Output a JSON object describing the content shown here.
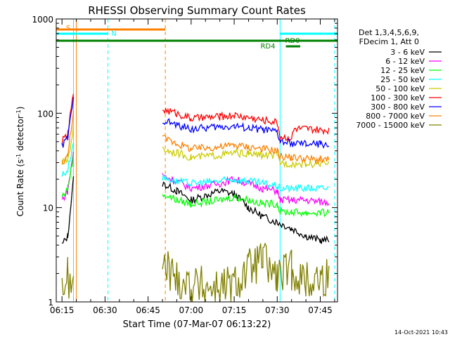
{
  "chart_data": {
    "type": "line",
    "title": "RHESSI Observing Summary Count Rates",
    "xlabel": "Start Time (07-Mar-07 06:13:22)",
    "ylabel_pre": "Count Rate (s",
    "ylabel_sup1": "-1",
    "ylabel_mid": " detector",
    "ylabel_sup2": "-1",
    "ylabel_post": ")",
    "y_scale": "log",
    "ylim": [
      1,
      1000
    ],
    "xlim": [
      "06:13",
      "07:51"
    ],
    "x_tick_labels": [
      "06:15",
      "06:30",
      "06:45",
      "07:00",
      "07:15",
      "07:30",
      "07:45"
    ],
    "y_tick_labels": [
      "1",
      "10",
      "100",
      "1000"
    ],
    "legend_title_1": "Det 1,3,4,5,6,9,",
    "legend_title_2": "FDecim 1, Att 0",
    "legend_position": "right",
    "footer_date": "14-Oct-2021 10:43",
    "flag_labels": {
      "s": "S",
      "n": "N",
      "rd4": "RD4",
      "rd0": "RD0"
    },
    "series": [
      {
        "name": "3 - 6 keV",
        "color": "#000000",
        "points": [
          [
            "06:15",
            4
          ],
          [
            "06:17",
            5
          ],
          [
            "06:19",
            20
          ],
          [
            "06:20",
            null
          ],
          [
            "06:50",
            18
          ],
          [
            "06:55",
            15
          ],
          [
            "07:00",
            12
          ],
          [
            "07:10",
            15
          ],
          [
            "07:15",
            14
          ],
          [
            "07:20",
            10
          ],
          [
            "07:25",
            8
          ],
          [
            "07:30",
            7
          ],
          [
            "07:35",
            6
          ],
          [
            "07:40",
            5
          ],
          [
            "07:45",
            4.5
          ],
          [
            "07:48",
            4.5
          ]
        ]
      },
      {
        "name": "6 - 12 keV",
        "color": "#ff00ff",
        "points": [
          [
            "06:15",
            12
          ],
          [
            "06:17",
            15
          ],
          [
            "06:19",
            40
          ],
          [
            "06:20",
            null
          ],
          [
            "06:50",
            22
          ],
          [
            "06:55",
            19
          ],
          [
            "07:00",
            16
          ],
          [
            "07:10",
            18
          ],
          [
            "07:15",
            20
          ],
          [
            "07:20",
            18
          ],
          [
            "07:25",
            16
          ],
          [
            "07:30",
            15
          ],
          [
            "07:31",
            12
          ],
          [
            "07:35",
            12
          ],
          [
            "07:40",
            12
          ],
          [
            "07:45",
            11.5
          ],
          [
            "07:48",
            11.5
          ]
        ]
      },
      {
        "name": "12 - 25 keV",
        "color": "#00ff00",
        "points": [
          [
            "06:15",
            13
          ],
          [
            "06:17",
            16
          ],
          [
            "06:19",
            35
          ],
          [
            "06:20",
            null
          ],
          [
            "06:50",
            14
          ],
          [
            "06:55",
            12
          ],
          [
            "07:00",
            11
          ],
          [
            "07:10",
            12
          ],
          [
            "07:15",
            13
          ],
          [
            "07:20",
            12
          ],
          [
            "07:25",
            11
          ],
          [
            "07:30",
            11
          ],
          [
            "07:31",
            9
          ],
          [
            "07:35",
            9
          ],
          [
            "07:40",
            8.8
          ],
          [
            "07:45",
            8.8
          ],
          [
            "07:48",
            8.8
          ]
        ]
      },
      {
        "name": "25 - 50 keV",
        "color": "#00ffff",
        "points": [
          [
            "06:15",
            22
          ],
          [
            "06:17",
            25
          ],
          [
            "06:19",
            50
          ],
          [
            "06:20",
            null
          ],
          [
            "06:50",
            21
          ],
          [
            "06:55",
            19
          ],
          [
            "07:00",
            18
          ],
          [
            "07:10",
            19
          ],
          [
            "07:15",
            20
          ],
          [
            "07:20",
            19
          ],
          [
            "07:25",
            18
          ],
          [
            "07:30",
            17
          ],
          [
            "07:31",
            16
          ],
          [
            "07:35",
            16
          ],
          [
            "07:40",
            16
          ],
          [
            "07:45",
            16
          ],
          [
            "07:48",
            16
          ]
        ]
      },
      {
        "name": "50 - 100 keV",
        "color": "#cccc00",
        "points": [
          [
            "06:15",
            30
          ],
          [
            "06:17",
            32
          ],
          [
            "06:19",
            70
          ],
          [
            "06:20",
            null
          ],
          [
            "06:50",
            42
          ],
          [
            "06:55",
            38
          ],
          [
            "07:00",
            34
          ],
          [
            "07:10",
            36
          ],
          [
            "07:15",
            38
          ],
          [
            "07:20",
            37
          ],
          [
            "07:25",
            36
          ],
          [
            "07:30",
            35
          ],
          [
            "07:31",
            30
          ],
          [
            "07:35",
            29
          ],
          [
            "07:40",
            29
          ],
          [
            "07:45",
            29
          ],
          [
            "07:48",
            29
          ]
        ]
      },
      {
        "name": "100 - 300 keV",
        "color": "#ff0000",
        "points": [
          [
            "06:15",
            50
          ],
          [
            "06:17",
            60
          ],
          [
            "06:19",
            165
          ],
          [
            "06:20",
            null
          ],
          [
            "06:50",
            110
          ],
          [
            "06:55",
            100
          ],
          [
            "07:00",
            88
          ],
          [
            "07:10",
            92
          ],
          [
            "07:15",
            95
          ],
          [
            "07:20",
            90
          ],
          [
            "07:25",
            85
          ],
          [
            "07:30",
            80
          ],
          [
            "07:31",
            56
          ],
          [
            "07:35",
            55
          ],
          [
            "07:36",
            68
          ],
          [
            "07:40",
            68
          ],
          [
            "07:45",
            66
          ],
          [
            "07:48",
            66
          ]
        ]
      },
      {
        "name": "300 - 800 keV",
        "color": "#0000ff",
        "points": [
          [
            "06:15",
            45
          ],
          [
            "06:17",
            55
          ],
          [
            "06:19",
            140
          ],
          [
            "06:20",
            null
          ],
          [
            "06:50",
            85
          ],
          [
            "06:55",
            75
          ],
          [
            "07:00",
            68
          ],
          [
            "07:10",
            72
          ],
          [
            "07:15",
            73
          ],
          [
            "07:20",
            70
          ],
          [
            "07:25",
            67
          ],
          [
            "07:30",
            63
          ],
          [
            "07:31",
            50
          ],
          [
            "07:35",
            48
          ],
          [
            "07:40",
            47
          ],
          [
            "07:45",
            47
          ],
          [
            "07:48",
            47
          ]
        ]
      },
      {
        "name": "800 - 7000 keV",
        "color": "#ff8000",
        "points": [
          [
            "06:15",
            30
          ],
          [
            "06:17",
            35
          ],
          [
            "06:19",
            110
          ],
          [
            "06:20",
            null
          ],
          [
            "06:50",
            55
          ],
          [
            "06:55",
            48
          ],
          [
            "07:00",
            42
          ],
          [
            "07:10",
            44
          ],
          [
            "07:15",
            46
          ],
          [
            "07:20",
            44
          ],
          [
            "07:25",
            42
          ],
          [
            "07:30",
            40
          ],
          [
            "07:31",
            35
          ],
          [
            "07:35",
            34
          ],
          [
            "07:40",
            33
          ],
          [
            "07:45",
            32
          ],
          [
            "07:48",
            32
          ]
        ]
      },
      {
        "name": "7000 - 15000 keV",
        "color": "#808000",
        "points": [
          [
            "06:15",
            1.5
          ],
          [
            "06:17",
            1.8
          ],
          [
            "06:19",
            1.3
          ],
          [
            "06:20",
            null
          ],
          [
            "06:50",
            2.5
          ],
          [
            "06:55",
            1.8
          ],
          [
            "07:00",
            1.5
          ],
          [
            "07:10",
            1.4
          ],
          [
            "07:15",
            1.5
          ],
          [
            "07:20",
            2.2
          ],
          [
            "07:25",
            2.8
          ],
          [
            "07:30",
            1.8
          ],
          [
            "07:35",
            2.2
          ],
          [
            "07:40",
            1.6
          ],
          [
            "07:45",
            1.8
          ],
          [
            "07:48",
            1.8
          ]
        ]
      }
    ],
    "flags": [
      {
        "id": "s",
        "color": "#ff8000",
        "segments": [
          [
            "06:13",
            "06:51"
          ]
        ]
      },
      {
        "id": "n",
        "color": "#00ffff",
        "segments": [
          [
            "06:13",
            "06:31"
          ],
          [
            "07:31",
            "07:51"
          ]
        ]
      },
      {
        "id": "saa",
        "color": "#008000",
        "segments": [
          [
            "06:13",
            "07:51"
          ]
        ]
      },
      {
        "id": "rd4",
        "color": "#008000",
        "segments": [
          [
            "07:31",
            "07:33"
          ]
        ]
      },
      {
        "id": "rd0",
        "color": "#008000",
        "segments": [
          [
            "07:33",
            "07:38"
          ]
        ]
      }
    ],
    "vlines": [
      {
        "t": "06:19",
        "color": "#00ffff",
        "style": "solid"
      },
      {
        "t": "06:20",
        "color": "#ff8000",
        "style": "solid"
      },
      {
        "t": "06:31",
        "color": "#00ffff",
        "style": "dashed"
      },
      {
        "t": "06:51",
        "color": "#ff8000",
        "style": "dashed"
      },
      {
        "t": "07:31",
        "color": "#00ffff",
        "style": "solid"
      },
      {
        "t": "07:50",
        "color": "#00ffff",
        "style": "dashed"
      }
    ]
  }
}
